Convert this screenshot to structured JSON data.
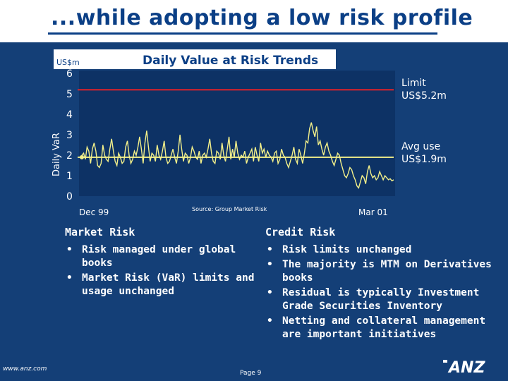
{
  "slide": {
    "title": "...while adopting a low risk profile",
    "footer_url": "www.anz.com",
    "page_number": "Page 9",
    "logo_text": "ANZ"
  },
  "chart_data": {
    "type": "line",
    "title": "Daily Value at Risk Trends",
    "units_label": "US$m",
    "ylabel": "Daily VaR",
    "ylim": [
      0,
      6
    ],
    "yticks": [
      "0",
      "1",
      "2",
      "3",
      "4",
      "5",
      "6"
    ],
    "xtick_labels": [
      "Dec 99",
      "Mar 01"
    ],
    "source": "Source: Group Market Risk",
    "grid": false,
    "limit": {
      "value": 5.2,
      "label_line1": "Limit",
      "label_line2": "US$5.2m",
      "color": "#e0222a"
    },
    "average": {
      "value": 1.9,
      "label_line1": "Avg use",
      "label_line2": "US$1.9m",
      "color": "#f3f08a"
    },
    "series": [
      {
        "color": "#f3f08a",
        "values": [
          2.0,
          2.1,
          1.8,
          2.4,
          2.2,
          1.6,
          2.3,
          2.6,
          2.2,
          1.5,
          1.4,
          1.6,
          2.5,
          2.0,
          1.8,
          1.7,
          2.3,
          2.8,
          2.2,
          1.7,
          1.5,
          2.1,
          1.9,
          1.6,
          1.7,
          2.4,
          2.7,
          2.0,
          1.6,
          1.8,
          2.2,
          2.0,
          2.4,
          2.9,
          2.3,
          1.6,
          2.6,
          3.2,
          2.4,
          1.7,
          2.1,
          2.0,
          1.7,
          2.5,
          2.0,
          1.8,
          2.2,
          2.7,
          1.9,
          1.6,
          1.7,
          2.0,
          2.3,
          1.9,
          1.6,
          2.2,
          3.0,
          2.3,
          1.7,
          2.1,
          2.0,
          1.6,
          1.9,
          2.4,
          2.2,
          1.9,
          1.8,
          2.2,
          1.6,
          2.0,
          2.1,
          1.9,
          2.3,
          2.8,
          2.1,
          1.7,
          1.6,
          2.2,
          2.1,
          1.8,
          2.6,
          2.0,
          1.7,
          2.3,
          2.9,
          1.8,
          2.3,
          1.9,
          2.7,
          2.1,
          1.8,
          2.0,
          1.9,
          2.2,
          1.6,
          1.9,
          2.1,
          2.3,
          1.7,
          2.4,
          2.0,
          1.7,
          2.6,
          2.1,
          2.3,
          1.9,
          2.2,
          2.0,
          1.9,
          1.7,
          2.1,
          2.2,
          1.6,
          1.8,
          2.3,
          2.0,
          1.9,
          1.6,
          1.4,
          1.7,
          2.0,
          2.4,
          1.8,
          1.6,
          2.3,
          2.0,
          1.6,
          2.1,
          2.7,
          2.6,
          3.3,
          3.6,
          3.2,
          2.9,
          3.4,
          2.5,
          2.7,
          2.3,
          2.0,
          2.4,
          2.6,
          2.2,
          2.0,
          1.7,
          1.5,
          1.8,
          2.1,
          2.0,
          1.6,
          1.3,
          1.0,
          0.9,
          1.1,
          1.4,
          1.3,
          1.0,
          0.8,
          0.5,
          0.4,
          0.7,
          1.0,
          0.9,
          0.6,
          1.2,
          1.5,
          1.1,
          0.9,
          1.0,
          0.8,
          0.9,
          1.2,
          1.0,
          0.8,
          1.0,
          0.9,
          0.8,
          0.85,
          0.75,
          0.8
        ]
      }
    ]
  },
  "market_risk": {
    "heading": "Market Risk",
    "bullets": [
      "Risk managed under global books",
      "Market Risk (VaR) limits and usage unchanged"
    ]
  },
  "credit_risk": {
    "heading": "Credit Risk",
    "bullets": [
      "Risk limits unchanged",
      "The majority is MTM on Derivatives books",
      "Residual is typically Investment Grade Securities Inventory",
      "Netting and collateral management are important initiatives"
    ]
  }
}
